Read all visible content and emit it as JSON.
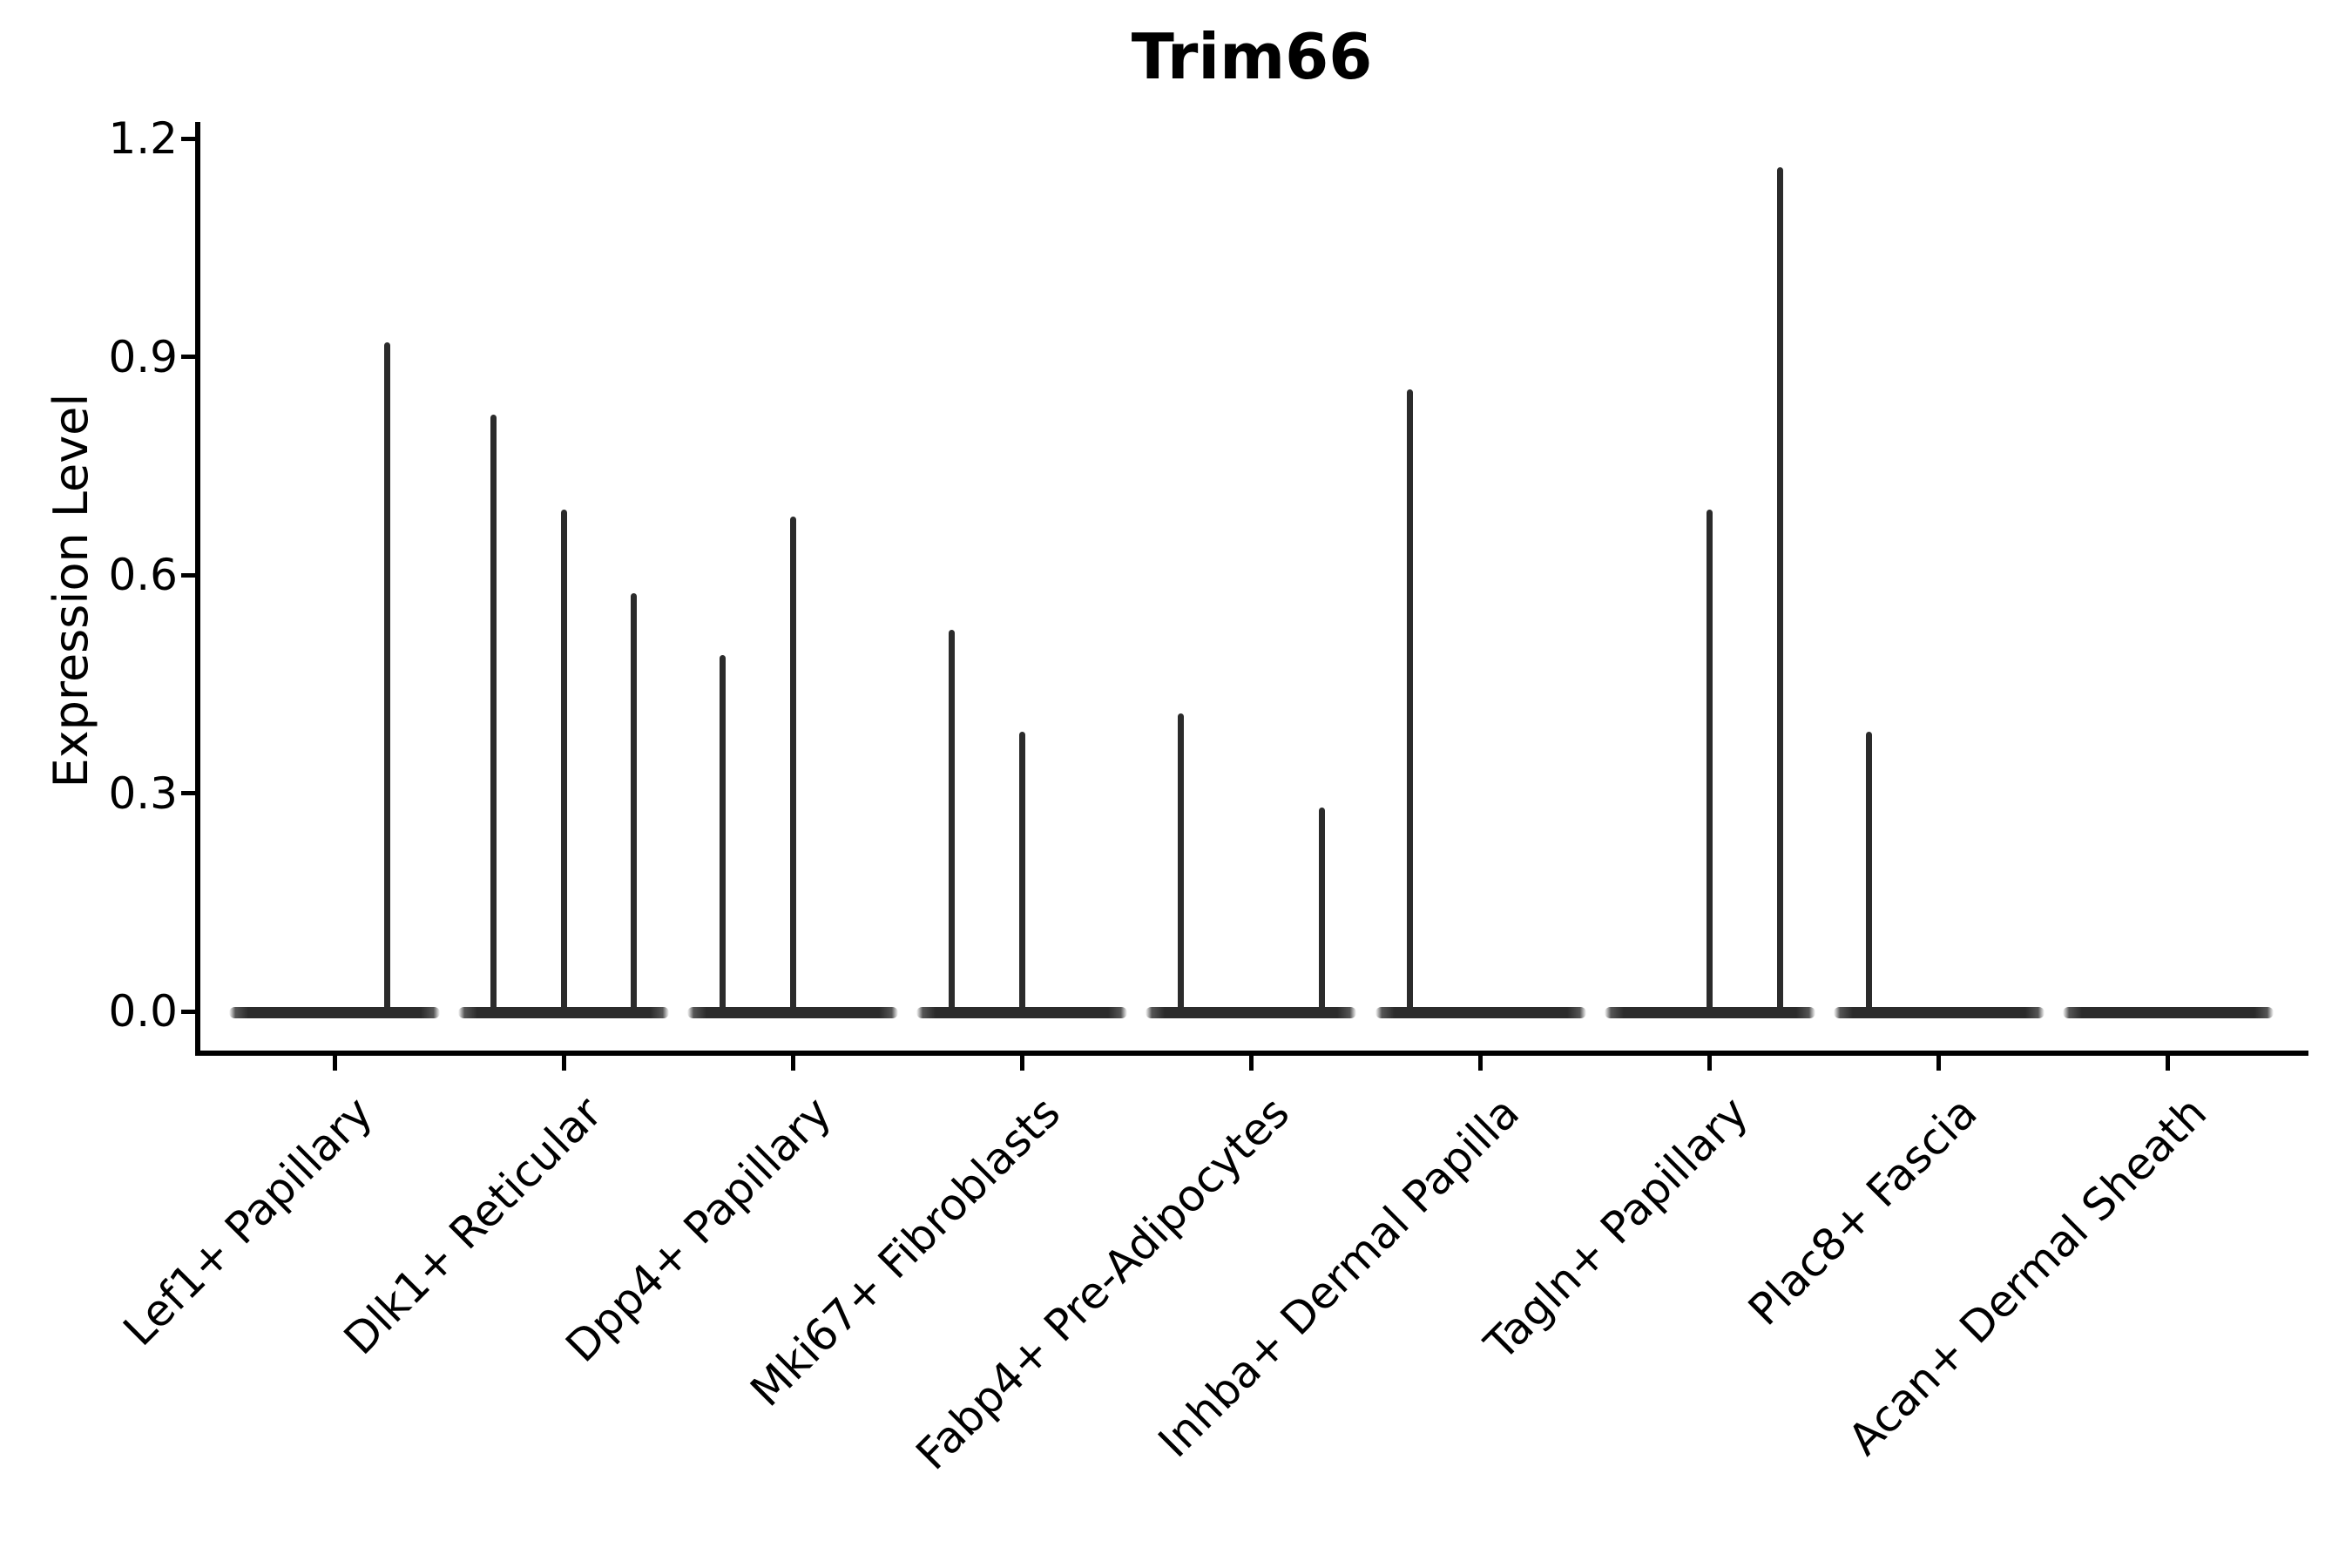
{
  "chart_data": {
    "type": "violin",
    "title": "Trim66",
    "ylabel": "Expression Level",
    "xlabel": "",
    "yticks": [
      0.0,
      0.3,
      0.6,
      0.9,
      1.2
    ],
    "ytick_labels": [
      "0.0",
      "0.3",
      "0.6",
      "0.9",
      "1.2"
    ],
    "ylim": [
      -0.06,
      1.22
    ],
    "grid": false,
    "legend": "none",
    "ink_color": "#2b2b2b",
    "axis_color": "#000000",
    "categories": [
      "Lef1+ Papillary",
      "Dlk1+ Reticular",
      "Dpp4+ Papillary",
      "Mki67+ Fibroblasts",
      "Fabp4+ Pre-Adipocytes",
      "Inhba+ Dermal Papilla",
      "Tagln+ Papillary",
      "Plac8+ Fascia",
      "Acan+ Dermal Sheath"
    ],
    "description": "Violin plot of Trim66 expression; each cell-type category holds dodged sub-violins that are flat at 0 with thin tails rising to the maximum expression value.",
    "violins": [
      {
        "category": "Lef1+ Papillary",
        "n_groups": 2,
        "tails": [
          {
            "group": 2,
            "max": 0.92
          }
        ]
      },
      {
        "category": "Dlk1+ Reticular",
        "n_groups": 3,
        "tails": [
          {
            "group": 1,
            "max": 0.82
          },
          {
            "group": 2,
            "max": 0.69
          },
          {
            "group": 3,
            "max": 0.575
          }
        ]
      },
      {
        "category": "Dpp4+ Papillary",
        "n_groups": 3,
        "tails": [
          {
            "group": 1,
            "max": 0.49
          },
          {
            "group": 2,
            "max": 0.68
          }
        ]
      },
      {
        "category": "Mki67+ Fibroblasts",
        "n_groups": 3,
        "tails": [
          {
            "group": 1,
            "max": 0.525
          },
          {
            "group": 2,
            "max": 0.385
          }
        ]
      },
      {
        "category": "Fabp4+ Pre-Adipocytes",
        "n_groups": 3,
        "tails": [
          {
            "group": 1,
            "max": 0.41
          },
          {
            "group": 3,
            "max": 0.28
          }
        ]
      },
      {
        "category": "Inhba+ Dermal Papilla",
        "n_groups": 3,
        "tails": [
          {
            "group": 1,
            "max": 0.855
          }
        ]
      },
      {
        "category": "Tagln+ Papillary",
        "n_groups": 3,
        "tails": [
          {
            "group": 2,
            "max": 0.69
          },
          {
            "group": 3,
            "max": 1.16
          }
        ]
      },
      {
        "category": "Plac8+ Fascia",
        "n_groups": 3,
        "tails": [
          {
            "group": 1,
            "max": 0.385
          }
        ]
      },
      {
        "category": "Acan+ Dermal Sheath",
        "n_groups": 3,
        "tails": []
      }
    ]
  }
}
